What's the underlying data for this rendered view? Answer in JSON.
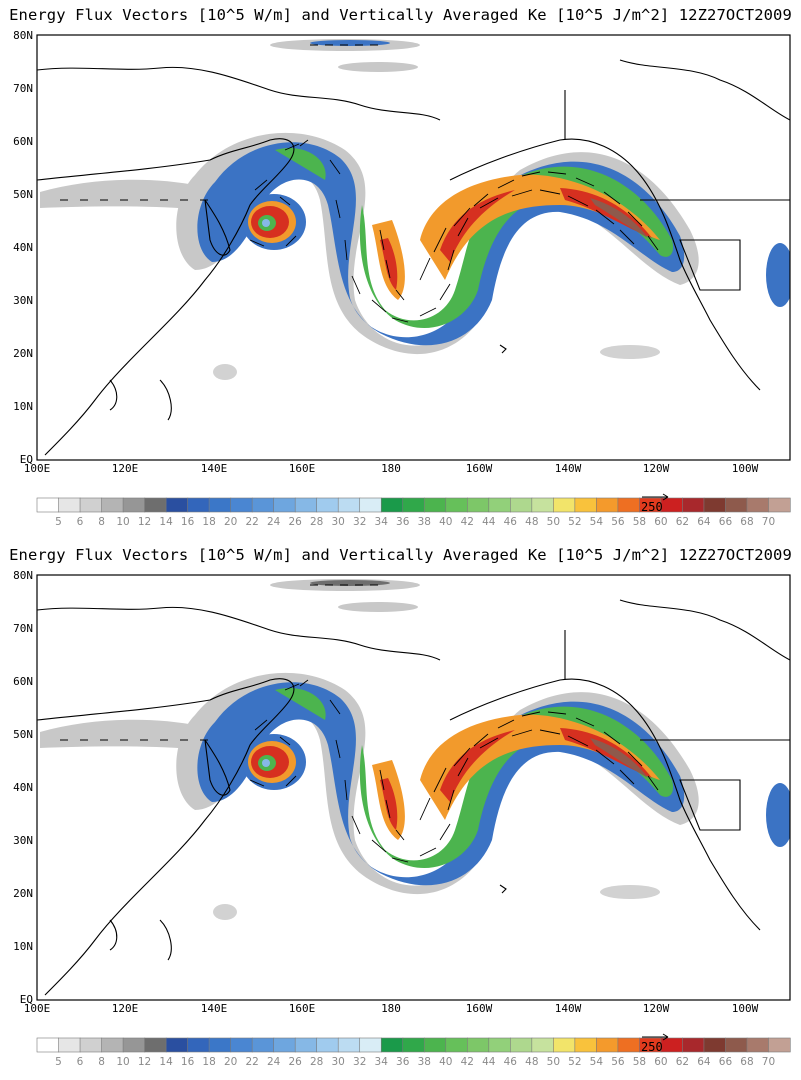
{
  "panels": [
    {
      "title": "Energy Flux Vectors [10^5 W/m] and Vertically Averaged Ke [10^5 J/m^2] 12Z27OCT2009",
      "lat_labels": [
        "80N",
        "70N",
        "60N",
        "50N",
        "40N",
        "30N",
        "20N",
        "10N",
        "EQ"
      ],
      "lon_labels": [
        "100E",
        "120E",
        "140E",
        "160E",
        "180",
        "160W",
        "140W",
        "120W",
        "100W"
      ],
      "vector_ref": "250"
    },
    {
      "title": "Energy Flux Vectors [10^5 W/m] and Vertically Averaged Ke [10^5 J/m^2] 12Z27OCT2009",
      "lat_labels": [
        "80N",
        "70N",
        "60N",
        "50N",
        "40N",
        "30N",
        "20N",
        "10N",
        "EQ"
      ],
      "lon_labels": [
        "100E",
        "120E",
        "140E",
        "160E",
        "180",
        "160W",
        "140W",
        "120W",
        "100W"
      ],
      "vector_ref": "250"
    }
  ],
  "colorbar": {
    "labels": [
      "5",
      "6",
      "8",
      "10",
      "12",
      "14",
      "16",
      "18",
      "20",
      "22",
      "24",
      "26",
      "28",
      "30",
      "32",
      "34",
      "36",
      "38",
      "40",
      "42",
      "44",
      "46",
      "48",
      "50",
      "52",
      "54",
      "56",
      "58",
      "60",
      "62",
      "64",
      "66",
      "68",
      "70"
    ],
    "colors": [
      "#ffffff",
      "#e6e6e6",
      "#d0d0d0",
      "#b4b4b4",
      "#969696",
      "#6e6e6e",
      "#2a4fa0",
      "#3366bb",
      "#3b77c8",
      "#4a86d2",
      "#5a95d8",
      "#6ea6df",
      "#86b8e6",
      "#a0cbee",
      "#bcdcf2",
      "#d9edf6",
      "#1a9a4a",
      "#30a84a",
      "#4cb44e",
      "#66c05a",
      "#7dc768",
      "#92d07a",
      "#aed88e",
      "#c6e29e",
      "#f2e46a",
      "#f9c23c",
      "#f49a2c",
      "#ee6f22",
      "#e33b1e",
      "#cc2020",
      "#a8282c",
      "#7e3a30",
      "#8e5a4c",
      "#a87a6c",
      "#c2a094"
    ]
  },
  "map": {
    "lat_range": [
      0,
      80
    ],
    "lon_range_east": [
      100,
      270
    ],
    "colors": {
      "land_outline": "#000000",
      "low_gray": "#c8c8c8",
      "blue": "#3b73c4",
      "green": "#4cb44e",
      "orange": "#f29a2c",
      "red": "#d63020",
      "brown": "#8e5a4c"
    }
  }
}
